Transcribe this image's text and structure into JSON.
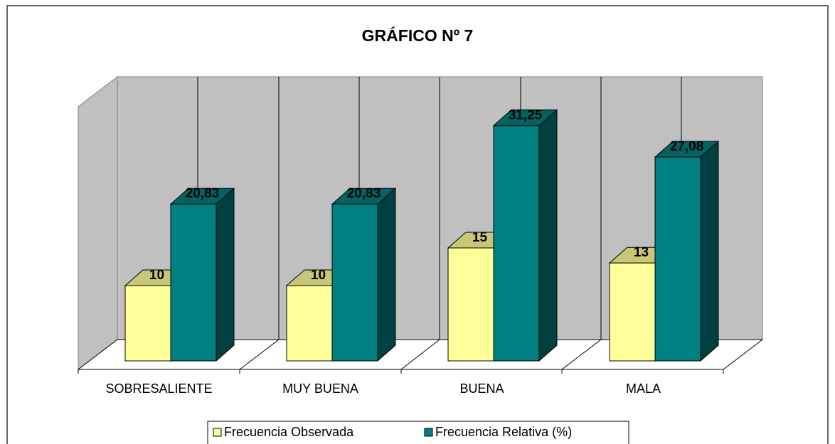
{
  "chart_data": {
    "type": "bar3d",
    "title": "GRÁFICO Nº 7",
    "categories": [
      "SOBRESALIENTE",
      "MUY BUENA",
      "BUENA",
      "MALA"
    ],
    "series": [
      {
        "name": "Frecuencia Observada",
        "color": "#ffff99",
        "values": [
          10,
          10,
          15,
          13
        ]
      },
      {
        "name": "Frecuencia Relativa (%)",
        "color": "#008080",
        "values": [
          20.83,
          20.83,
          31.25,
          27.08
        ],
        "value_labels": [
          "20,83",
          "20,83",
          "31,25",
          "27,08"
        ]
      }
    ]
  }
}
